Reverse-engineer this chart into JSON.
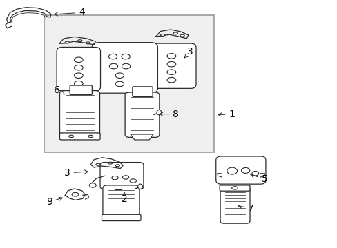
{
  "bg_color": "#ffffff",
  "box_bg": "#efefef",
  "box_border": "#999999",
  "line_color": "#2a2a2a",
  "text_color": "#000000",
  "font_size": 10
}
